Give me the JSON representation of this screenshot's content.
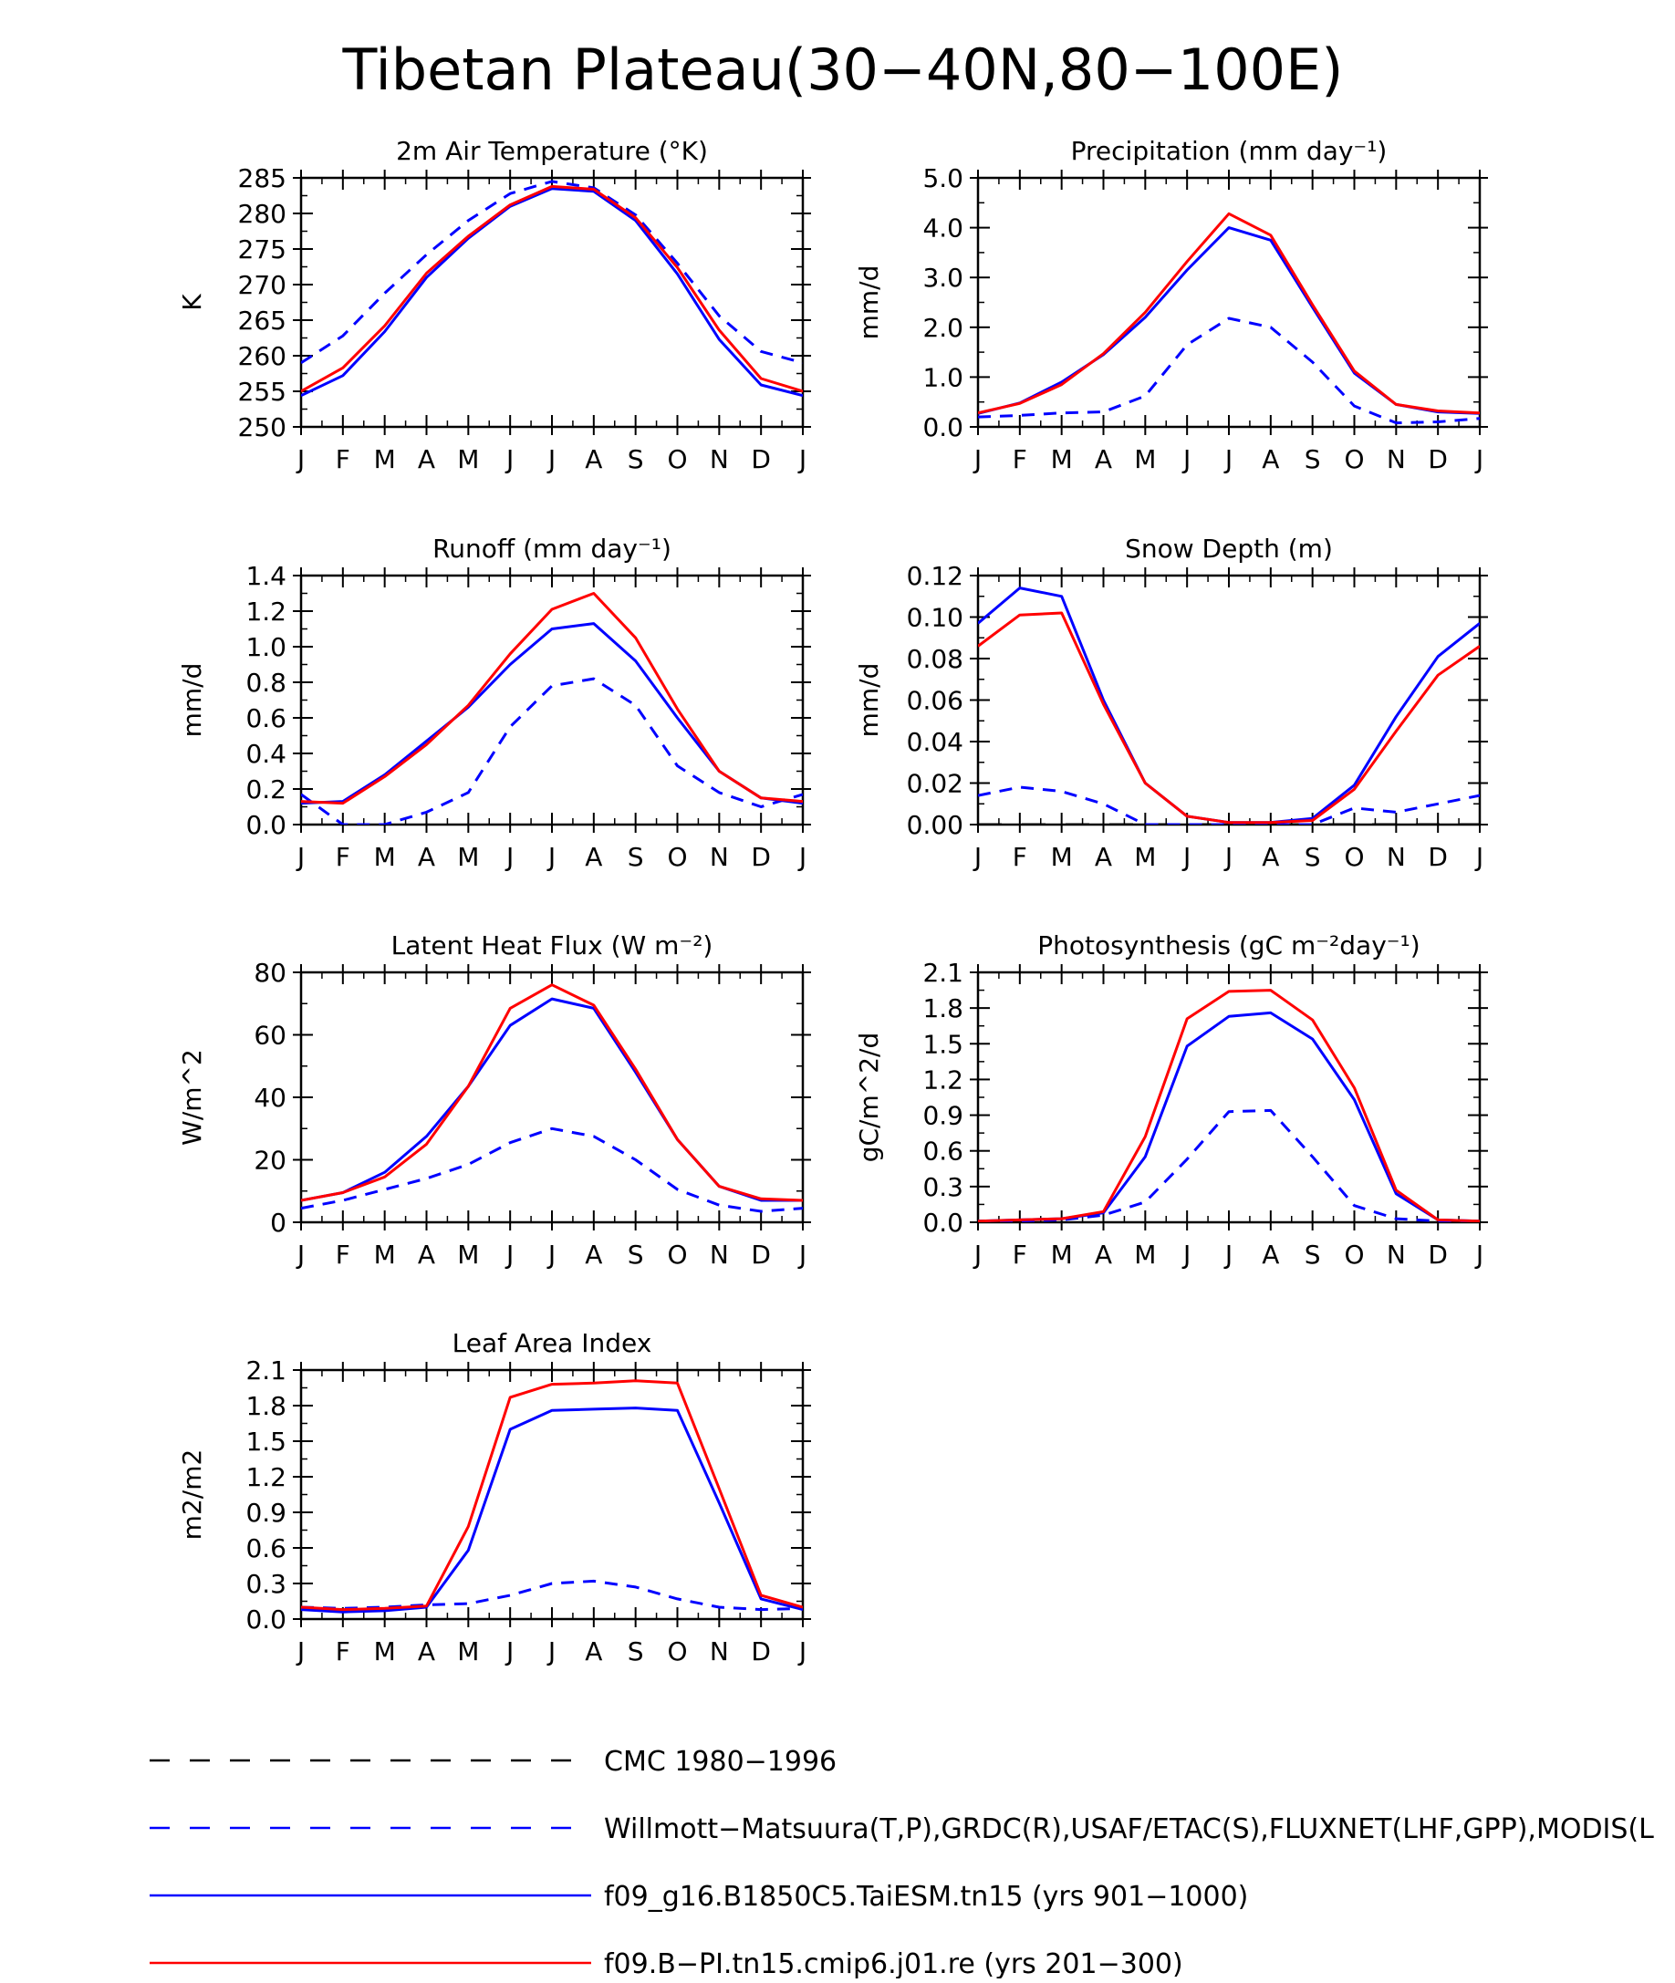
{
  "title": "Tibetan Plateau(30−40N,80−100E)",
  "months": [
    "J",
    "F",
    "M",
    "A",
    "M",
    "J",
    "J",
    "A",
    "S",
    "O",
    "N",
    "D",
    "J"
  ],
  "series_styles": [
    {
      "key": "cmc",
      "color": "#000000",
      "dash": "long"
    },
    {
      "key": "obs",
      "color": "#0000ff",
      "dash": "short"
    },
    {
      "key": "taiesm",
      "color": "#0000ff",
      "dash": "solid"
    },
    {
      "key": "cmip6",
      "color": "#ff0000",
      "dash": "solid"
    }
  ],
  "legend": [
    {
      "key": "cmc",
      "label": "CMC 1980−1996"
    },
    {
      "key": "obs",
      "label": "Willmott−Matsuura(T,P),GRDC(R),USAF/ETAC(S),FLUXNET(LHF,GPP),MODIS(L"
    },
    {
      "key": "taiesm",
      "label": "f09_g16.B1850C5.TaiESM.tn15 (yrs 901−1000)"
    },
    {
      "key": "cmip6",
      "label": "f09.B−PI.tn15.cmip6.j01.re (yrs 201−300)"
    }
  ],
  "chart_data": [
    {
      "type": "line",
      "title": "2m Air Temperature (°K)",
      "ylabel": "K",
      "ylim": [
        250,
        285
      ],
      "yticks": [
        "250",
        "255",
        "260",
        "265",
        "270",
        "275",
        "280",
        "285"
      ],
      "x": [
        "J",
        "F",
        "M",
        "A",
        "M",
        "J",
        "J",
        "A",
        "S",
        "O",
        "N",
        "D",
        "J"
      ],
      "series": [
        {
          "key": "obs",
          "values": [
            259,
            262.8,
            268.8,
            274.2,
            279,
            282.8,
            284.5,
            283.6,
            279.8,
            273,
            265.6,
            260.6,
            259
          ]
        },
        {
          "key": "taiesm",
          "values": [
            254.4,
            257.2,
            263.4,
            271,
            276.5,
            281,
            283.5,
            283.1,
            279,
            271.5,
            262.3,
            255.9,
            254.4
          ]
        },
        {
          "key": "cmip6",
          "values": [
            255,
            258.3,
            264.2,
            271.6,
            276.8,
            281.2,
            283.8,
            283.4,
            279.4,
            272.4,
            263.6,
            256.8,
            255
          ]
        }
      ]
    },
    {
      "type": "line",
      "title": "Precipitation (mm day⁻¹)",
      "ylabel": "mm/d",
      "ylim": [
        0,
        5
      ],
      "yticks": [
        "0.0",
        "1.0",
        "2.0",
        "3.0",
        "4.0",
        "5.0"
      ],
      "x": [
        "J",
        "F",
        "M",
        "A",
        "M",
        "J",
        "J",
        "A",
        "S",
        "O",
        "N",
        "D",
        "J"
      ],
      "series": [
        {
          "key": "obs",
          "values": [
            0.2,
            0.23,
            0.28,
            0.3,
            0.62,
            1.65,
            2.18,
            2.0,
            1.3,
            0.42,
            0.08,
            0.1,
            0.17
          ]
        },
        {
          "key": "taiesm",
          "values": [
            0.27,
            0.48,
            0.9,
            1.45,
            2.2,
            3.15,
            4.0,
            3.75,
            2.4,
            1.08,
            0.45,
            0.3,
            0.27
          ]
        },
        {
          "key": "cmip6",
          "values": [
            0.28,
            0.47,
            0.85,
            1.47,
            2.3,
            3.32,
            4.28,
            3.85,
            2.45,
            1.12,
            0.45,
            0.32,
            0.28
          ]
        }
      ]
    },
    {
      "type": "line",
      "title": "Runoff (mm day⁻¹)",
      "ylabel": "mm/d",
      "ylim": [
        0,
        1.4
      ],
      "yticks": [
        "0.0",
        "0.2",
        "0.4",
        "0.6",
        "0.8",
        "1.0",
        "1.2",
        "1.4"
      ],
      "x": [
        "J",
        "F",
        "M",
        "A",
        "M",
        "J",
        "J",
        "A",
        "S",
        "O",
        "N",
        "D",
        "J"
      ],
      "series": [
        {
          "key": "obs",
          "values": [
            0.17,
            0.0,
            0.0,
            0.07,
            0.18,
            0.55,
            0.78,
            0.82,
            0.67,
            0.33,
            0.18,
            0.1,
            0.17
          ]
        },
        {
          "key": "taiesm",
          "values": [
            0.12,
            0.13,
            0.28,
            0.47,
            0.66,
            0.9,
            1.1,
            1.13,
            0.92,
            0.6,
            0.3,
            0.15,
            0.12
          ]
        },
        {
          "key": "cmip6",
          "values": [
            0.13,
            0.12,
            0.27,
            0.45,
            0.67,
            0.96,
            1.21,
            1.3,
            1.05,
            0.65,
            0.3,
            0.15,
            0.13
          ]
        }
      ]
    },
    {
      "type": "line",
      "title": "Snow Depth (m)",
      "ylabel": "mm/d",
      "ylim": [
        0,
        0.12
      ],
      "yticks": [
        "0.00",
        "0.02",
        "0.04",
        "0.06",
        "0.08",
        "0.10",
        "0.12"
      ],
      "x": [
        "J",
        "F",
        "M",
        "A",
        "M",
        "J",
        "J",
        "A",
        "S",
        "O",
        "N",
        "D",
        "J"
      ],
      "series": [
        {
          "key": "cmc",
          "values": [
            0,
            0,
            0,
            0,
            0,
            0,
            0,
            0,
            0,
            0,
            0,
            0,
            0
          ]
        },
        {
          "key": "obs",
          "values": [
            0.014,
            0.018,
            0.016,
            0.01,
            0.0,
            0.0,
            0.0,
            0.0,
            0.0,
            0.008,
            0.006,
            0.01,
            0.014
          ]
        },
        {
          "key": "taiesm",
          "values": [
            0.097,
            0.114,
            0.11,
            0.06,
            0.02,
            0.004,
            0.001,
            0.001,
            0.003,
            0.019,
            0.052,
            0.081,
            0.097
          ]
        },
        {
          "key": "cmip6",
          "values": [
            0.086,
            0.101,
            0.102,
            0.058,
            0.02,
            0.004,
            0.001,
            0.001,
            0.002,
            0.017,
            0.045,
            0.072,
            0.086
          ]
        }
      ]
    },
    {
      "type": "line",
      "title": "Latent Heat Flux (W m⁻²)",
      "ylabel": "W/m^2",
      "ylim": [
        0,
        80
      ],
      "yticks": [
        "0",
        "20",
        "40",
        "60",
        "80"
      ],
      "x": [
        "J",
        "F",
        "M",
        "A",
        "M",
        "J",
        "J",
        "A",
        "S",
        "O",
        "N",
        "D",
        "J"
      ],
      "series": [
        {
          "key": "obs",
          "values": [
            4.5,
            7,
            10.5,
            14,
            18.5,
            25.5,
            30,
            27.5,
            20,
            10.5,
            5.5,
            3.5,
            4.5
          ]
        },
        {
          "key": "taiesm",
          "values": [
            7,
            9.5,
            16,
            27.5,
            43.5,
            63,
            71.5,
            68.5,
            48,
            26.5,
            11.5,
            7,
            7
          ]
        },
        {
          "key": "cmip6",
          "values": [
            7,
            9.5,
            14.5,
            25,
            43.5,
            68.5,
            76,
            69.5,
            49,
            26.5,
            11.5,
            7.5,
            7
          ]
        }
      ]
    },
    {
      "type": "line",
      "title": "Photosynthesis (gC m⁻²day⁻¹)",
      "ylabel": "gC/m^2/d",
      "ylim": [
        0,
        2.1
      ],
      "yticks": [
        "0.0",
        "0.3",
        "0.6",
        "0.9",
        "1.2",
        "1.5",
        "1.8",
        "2.1"
      ],
      "x": [
        "J",
        "F",
        "M",
        "A",
        "M",
        "J",
        "J",
        "A",
        "S",
        "O",
        "N",
        "D",
        "J"
      ],
      "series": [
        {
          "key": "obs",
          "values": [
            0.01,
            0.01,
            0.02,
            0.06,
            0.17,
            0.53,
            0.93,
            0.94,
            0.55,
            0.14,
            0.03,
            0.01,
            0.01
          ]
        },
        {
          "key": "taiesm",
          "values": [
            0.01,
            0.02,
            0.03,
            0.08,
            0.55,
            1.48,
            1.73,
            1.76,
            1.54,
            1.03,
            0.24,
            0.02,
            0.01
          ]
        },
        {
          "key": "cmip6",
          "values": [
            0.01,
            0.02,
            0.03,
            0.09,
            0.72,
            1.71,
            1.94,
            1.95,
            1.7,
            1.13,
            0.27,
            0.02,
            0.01
          ]
        }
      ]
    },
    {
      "type": "line",
      "title": "Leaf Area Index",
      "ylabel": "m2/m2",
      "ylim": [
        0,
        2.1
      ],
      "yticks": [
        "0.0",
        "0.3",
        "0.6",
        "0.9",
        "1.2",
        "1.5",
        "1.8",
        "2.1"
      ],
      "x": [
        "J",
        "F",
        "M",
        "A",
        "M",
        "J",
        "J",
        "A",
        "S",
        "O",
        "N",
        "D",
        "J"
      ],
      "series": [
        {
          "key": "obs",
          "values": [
            0.1,
            0.09,
            0.1,
            0.12,
            0.13,
            0.2,
            0.3,
            0.32,
            0.27,
            0.17,
            0.1,
            0.08,
            0.09
          ]
        },
        {
          "key": "taiesm",
          "values": [
            0.08,
            0.06,
            0.07,
            0.1,
            0.58,
            1.6,
            1.76,
            1.77,
            1.78,
            1.76,
            0.98,
            0.17,
            0.08
          ]
        },
        {
          "key": "cmip6",
          "values": [
            0.1,
            0.08,
            0.09,
            0.11,
            0.78,
            1.87,
            1.98,
            1.99,
            2.01,
            1.99,
            1.1,
            0.2,
            0.1
          ]
        }
      ]
    }
  ]
}
